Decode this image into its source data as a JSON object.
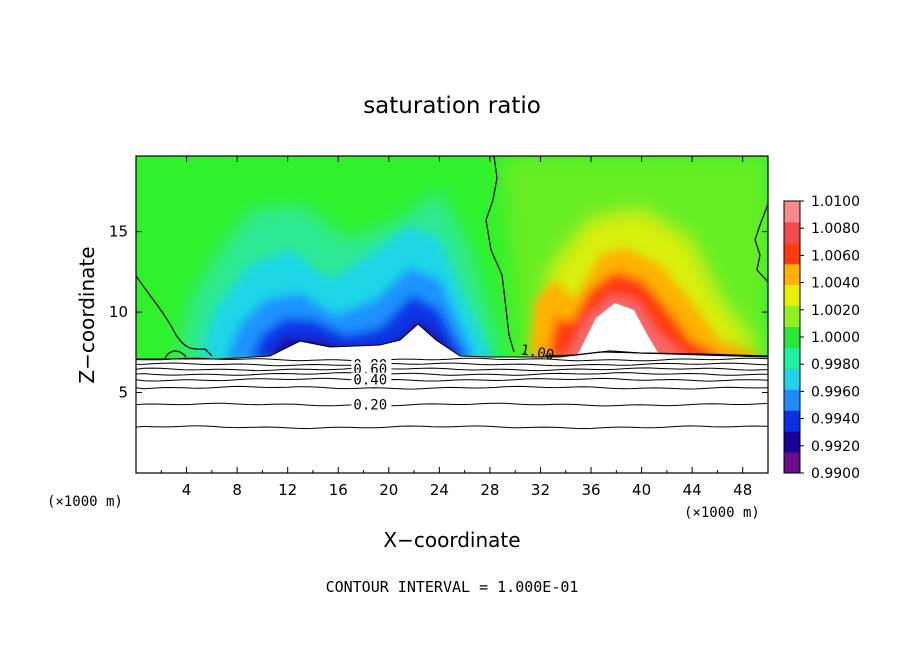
{
  "chart_data": {
    "type": "heatmap",
    "title": "saturation ratio",
    "xlabel": "X−coordinate",
    "ylabel": "Z−coordinate",
    "x_unit_label": "(×1000 m)",
    "x_ticks": [
      4,
      8,
      12,
      16,
      20,
      24,
      28,
      32,
      36,
      40,
      44,
      48
    ],
    "y_ticks": [
      5,
      10,
      15
    ],
    "xlim": [
      0,
      50
    ],
    "ylim": [
      0,
      19.7
    ],
    "footer": "CONTOUR INTERVAL = 1.000E-01",
    "colorbar": {
      "labels": [
        "1.0100",
        "1.0080",
        "1.0060",
        "1.0040",
        "1.0020",
        "1.0000",
        "0.9980",
        "0.9960",
        "0.9940",
        "0.9920",
        "0.9900"
      ],
      "range": [
        0.99,
        1.01
      ],
      "colors": [
        "#6a0d8a",
        "#1a0099",
        "#0a30e6",
        "#1c8cff",
        "#1fd4e6",
        "#1ef2a0",
        "#27e834",
        "#8ff020",
        "#e6f000",
        "#ffb000",
        "#ff3a10",
        "#f54a4a",
        "#f88a8a"
      ]
    },
    "contour_labels": [
      "0.80",
      "0.60",
      "0.40",
      "0.20",
      "1.00"
    ],
    "contour_levels_below_terrain": [
      {
        "label": "",
        "z": 7.05
      },
      {
        "label": "0.80",
        "z": 6.75
      },
      {
        "label": "0.60",
        "z": 6.45
      },
      {
        "label": "",
        "z": 6.15
      },
      {
        "label": "0.40",
        "z": 5.8
      },
      {
        "label": "",
        "z": 5.3
      },
      {
        "label": "0.20",
        "z": 4.25
      },
      {
        "label": "",
        "z": 2.85
      }
    ],
    "terrain_top_z": 7.1
  }
}
